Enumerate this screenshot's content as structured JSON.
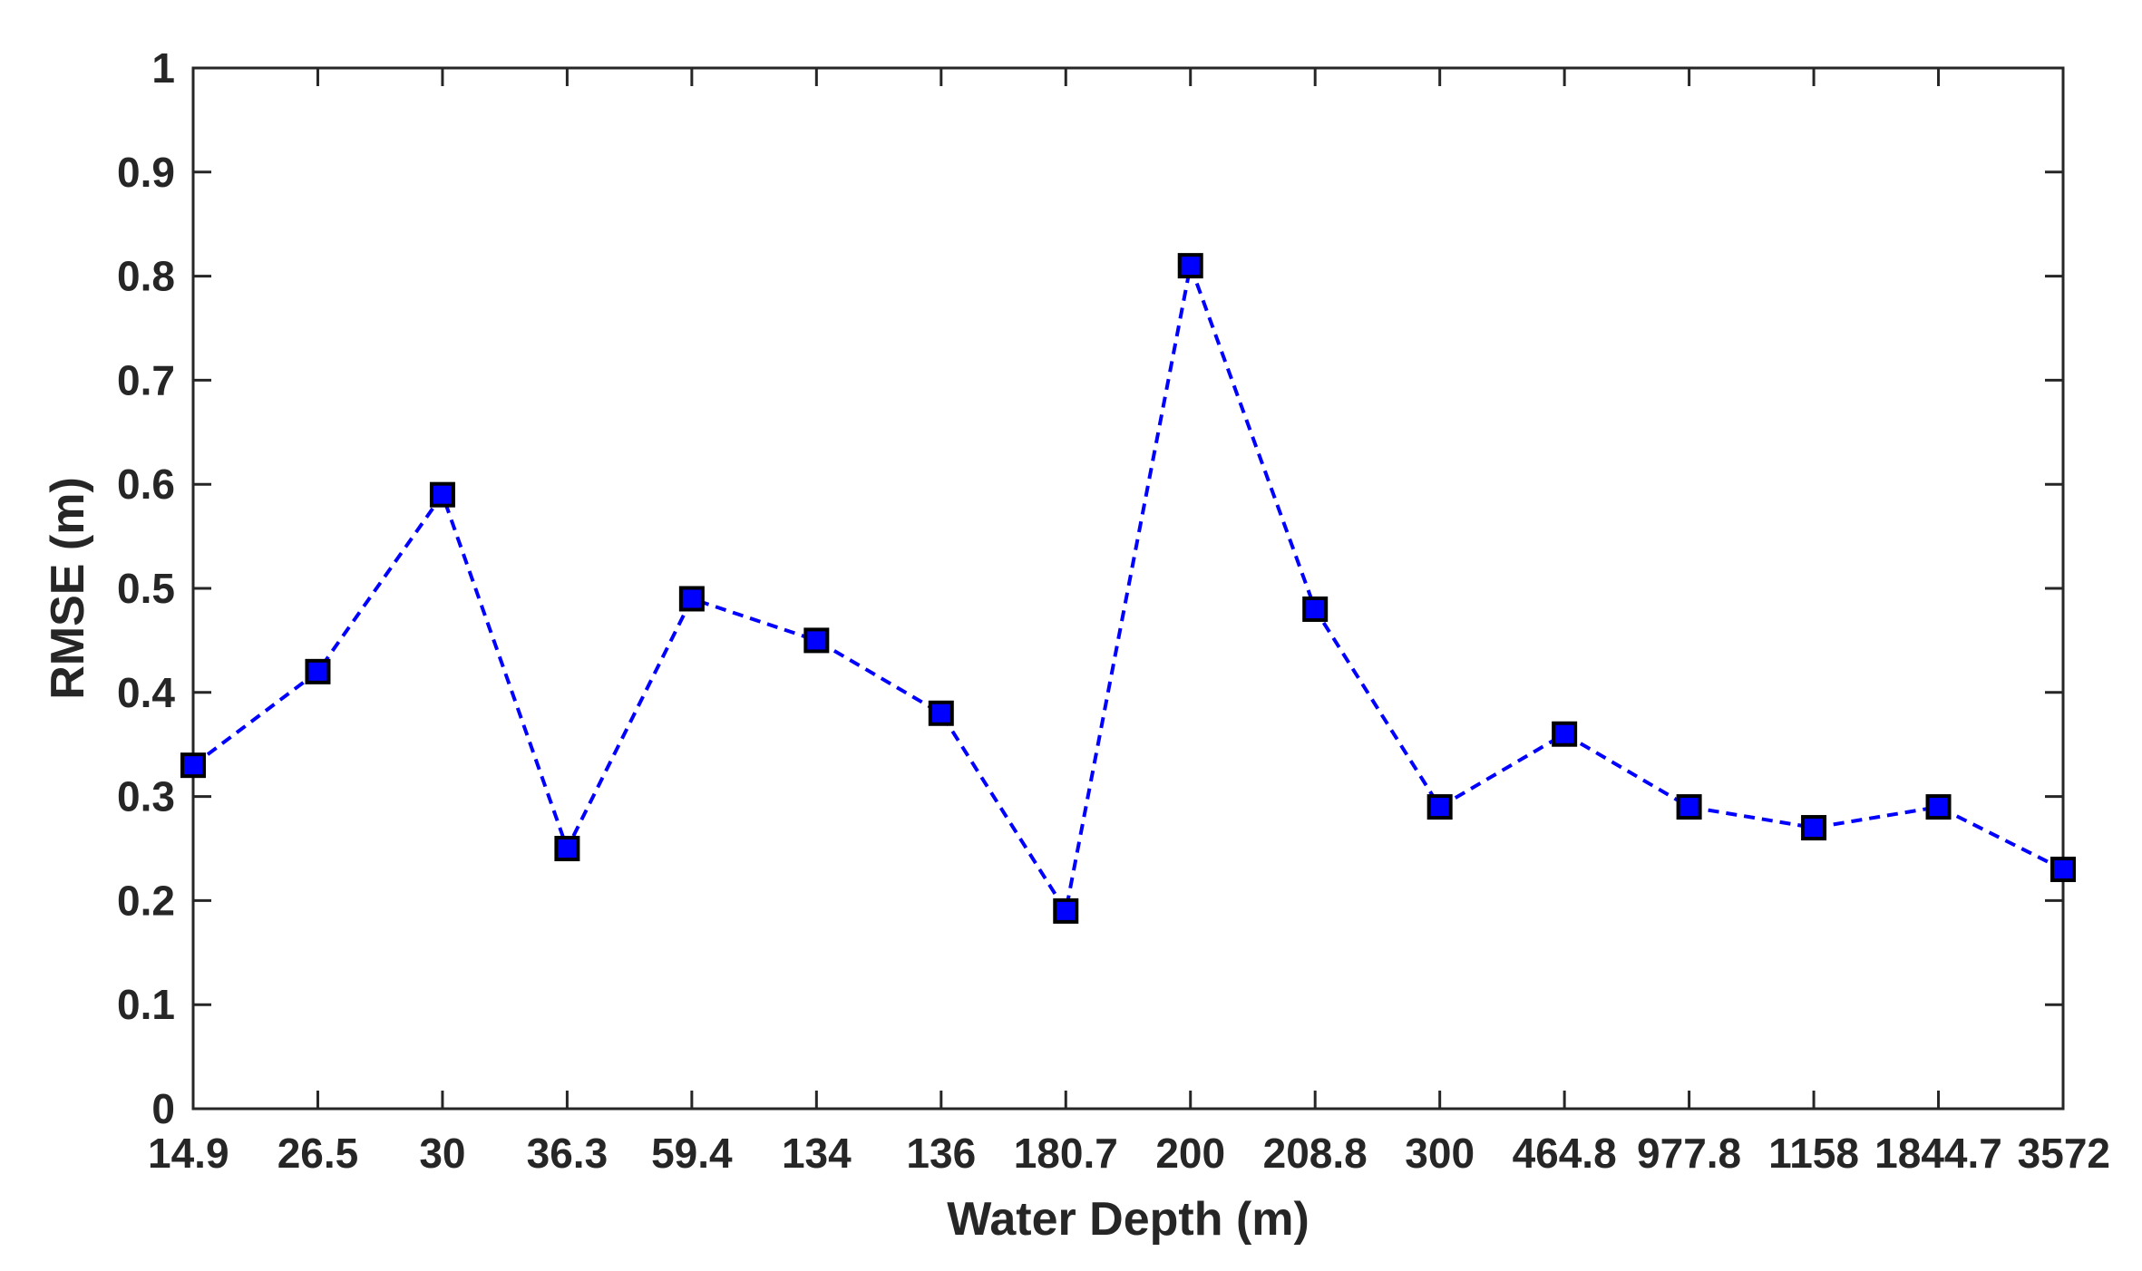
{
  "chart_data": {
    "type": "line",
    "xlabel": "Water Depth (m)",
    "ylabel": "RMSE (m)",
    "categories": [
      "14.9",
      "26.5",
      "30",
      "36.3",
      "59.4",
      "134",
      "136",
      "180.7",
      "200",
      "208.8",
      "300",
      "464.8",
      "977.8",
      "1158",
      "1844.7",
      "3572"
    ],
    "series": [
      {
        "values": [
          0.33,
          0.42,
          0.59,
          0.25,
          0.49,
          0.45,
          0.38,
          0.19,
          0.81,
          0.48,
          0.29,
          0.36,
          0.29,
          0.27,
          0.29,
          0.23
        ]
      }
    ],
    "ylim": [
      0,
      1
    ],
    "yticks": [
      0,
      0.1,
      0.2,
      0.3,
      0.4,
      0.5,
      0.6,
      0.7,
      0.8,
      0.9,
      1
    ],
    "ytick_labels": [
      "0",
      "0.1",
      "0.2",
      "0.3",
      "0.4",
      "0.5",
      "0.6",
      "0.7",
      "0.8",
      "0.9",
      "1"
    ],
    "grid": false,
    "line_style": "dashed",
    "marker": "square",
    "colors": {
      "line": "#0000ff",
      "marker_fill": "#0000ff",
      "marker_edge": "#000000",
      "axes": "#262626"
    }
  }
}
